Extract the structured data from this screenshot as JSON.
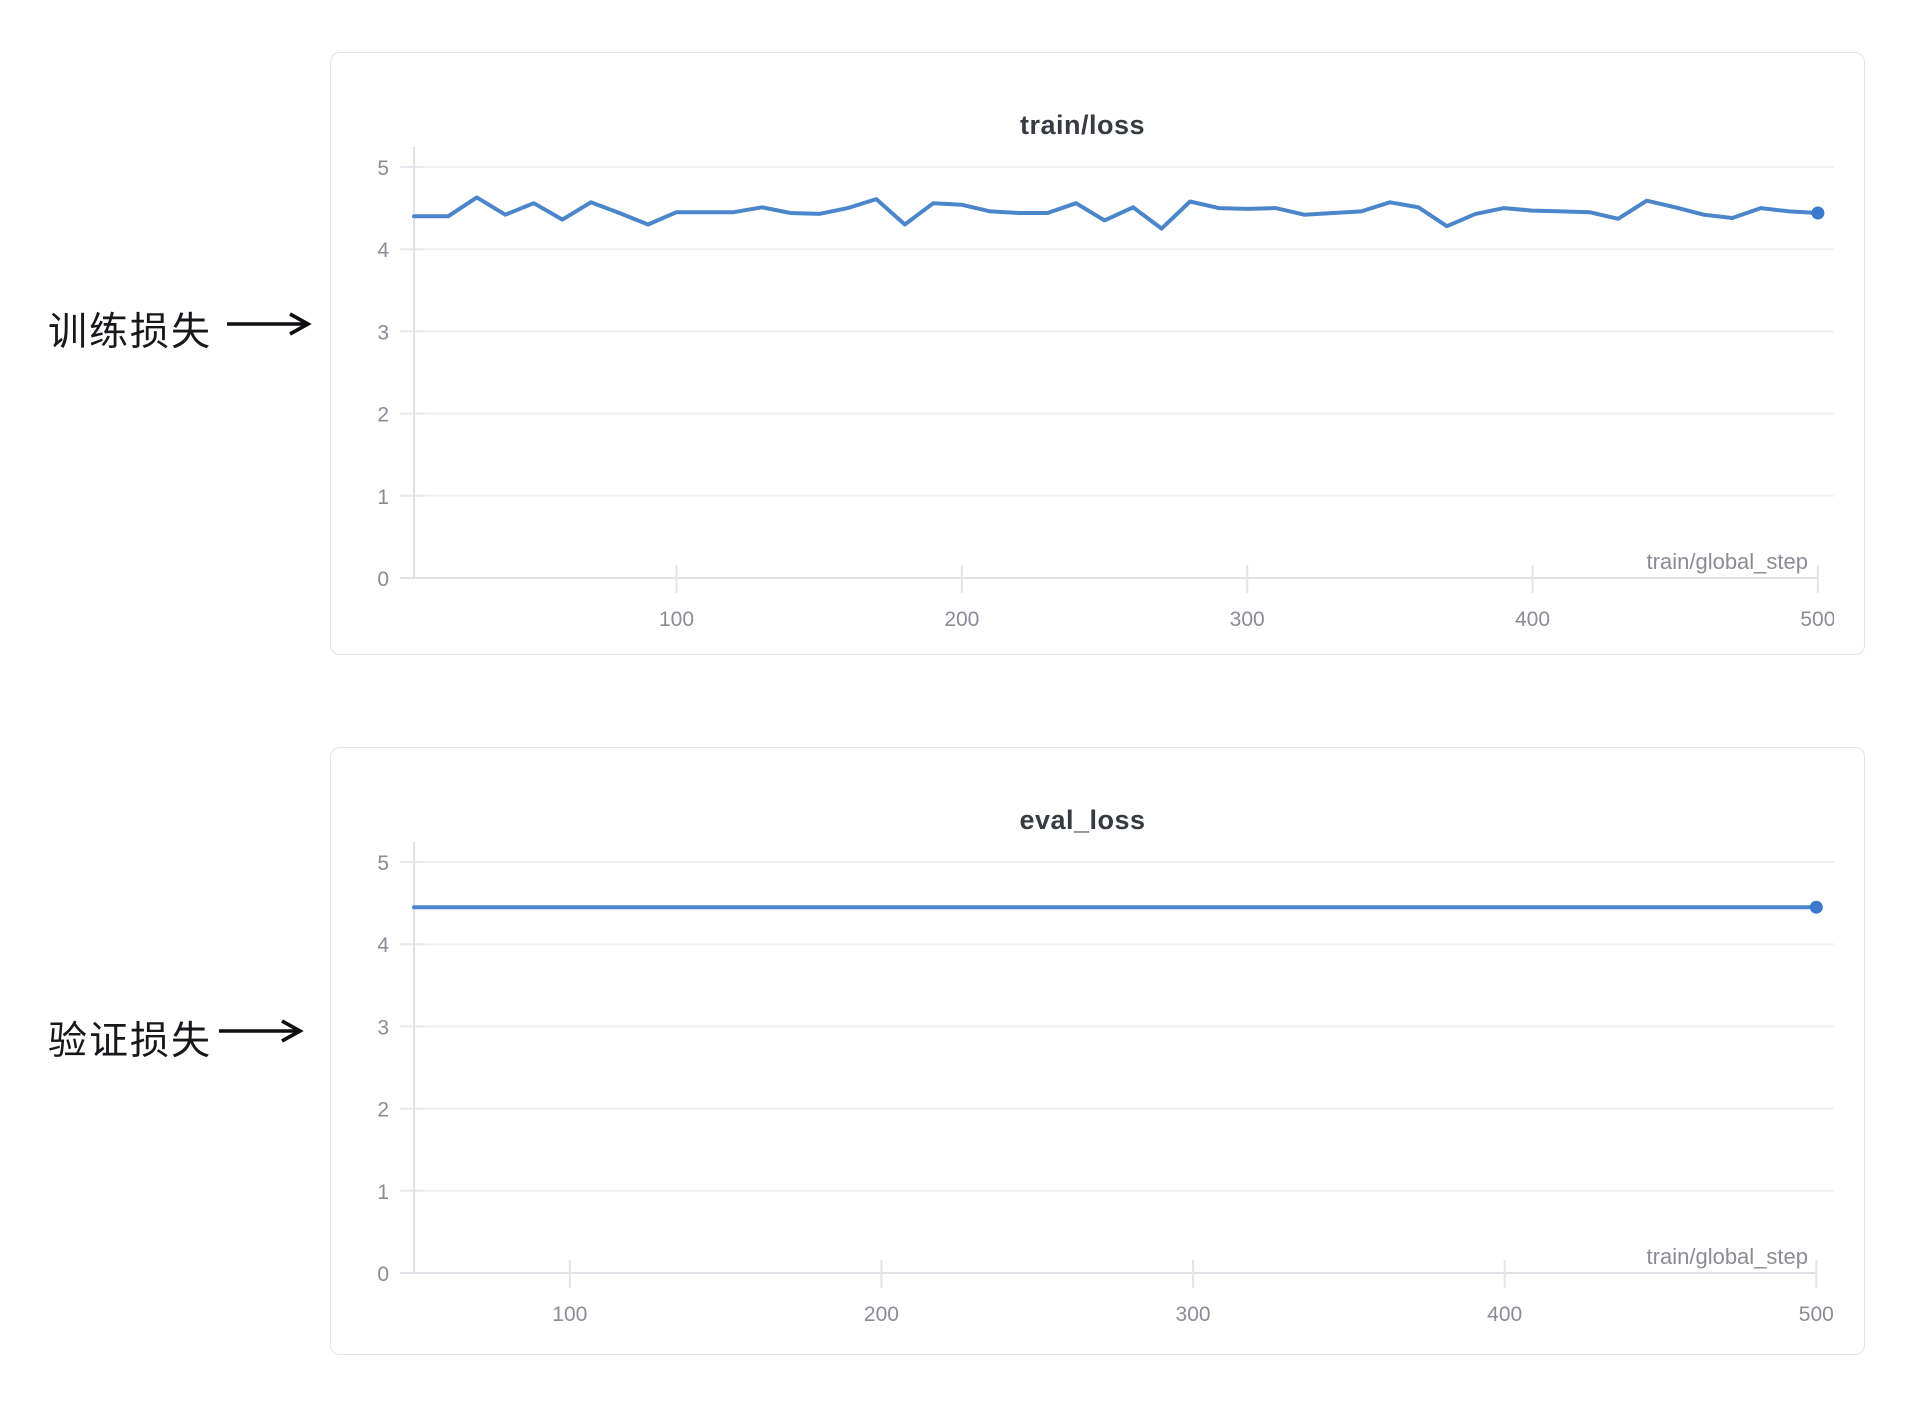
{
  "page": {
    "background": "#ffffff"
  },
  "annotations": [
    {
      "label": "训练损失",
      "points_to": "train/loss chart"
    },
    {
      "label": "验证损失",
      "points_to": "eval_loss chart"
    }
  ],
  "chart_data": [
    {
      "type": "line",
      "title": "train/loss",
      "xlabel": "train/global_step",
      "x_ticks": [
        100,
        200,
        300,
        400,
        500
      ],
      "y_ticks": [
        0,
        1,
        2,
        3,
        4,
        5
      ],
      "xlim": [
        8,
        506
      ],
      "ylim": [
        0,
        5
      ],
      "grid": "horizontal",
      "legend": "none",
      "series": [
        {
          "name": "train/loss",
          "color": "#4a86c9",
          "dot_color": "#3a79cb",
          "x": [
            8,
            20,
            30,
            40,
            50,
            60,
            70,
            80,
            90,
            100,
            110,
            120,
            130,
            140,
            150,
            160,
            170,
            180,
            190,
            200,
            210,
            220,
            230,
            240,
            250,
            260,
            270,
            280,
            290,
            300,
            310,
            320,
            330,
            340,
            350,
            360,
            370,
            380,
            390,
            400,
            410,
            420,
            430,
            440,
            450,
            460,
            470,
            480,
            490,
            500
          ],
          "values": [
            4.4,
            4.4,
            4.63,
            4.42,
            4.56,
            4.36,
            4.57,
            4.44,
            4.3,
            4.45,
            4.45,
            4.45,
            4.51,
            4.44,
            4.43,
            4.5,
            4.61,
            4.3,
            4.56,
            4.54,
            4.46,
            4.44,
            4.44,
            4.56,
            4.35,
            4.51,
            4.25,
            4.58,
            4.5,
            4.49,
            4.5,
            4.42,
            4.44,
            4.46,
            4.57,
            4.51,
            4.28,
            4.43,
            4.5,
            4.47,
            4.46,
            4.45,
            4.37,
            4.59,
            4.51,
            4.42,
            4.38,
            4.5,
            4.46,
            4.44
          ]
        }
      ],
      "end_dot": true
    },
    {
      "type": "line",
      "title": "eval_loss",
      "xlabel": "train/global_step",
      "x_ticks": [
        100,
        200,
        300,
        400,
        500
      ],
      "y_ticks": [
        0,
        1,
        2,
        3,
        4,
        5
      ],
      "xlim": [
        50,
        506
      ],
      "ylim": [
        0,
        5
      ],
      "grid": "horizontal",
      "legend": "none",
      "series": [
        {
          "name": "eval_loss",
          "color": "#4a86c9",
          "dot_color": "#3a79cb",
          "x": [
            50,
            100,
            150,
            200,
            250,
            300,
            350,
            400,
            450,
            500
          ],
          "values": [
            4.45,
            4.45,
            4.45,
            4.45,
            4.45,
            4.45,
            4.45,
            4.45,
            4.45,
            4.45
          ]
        }
      ],
      "end_dot": true
    }
  ]
}
